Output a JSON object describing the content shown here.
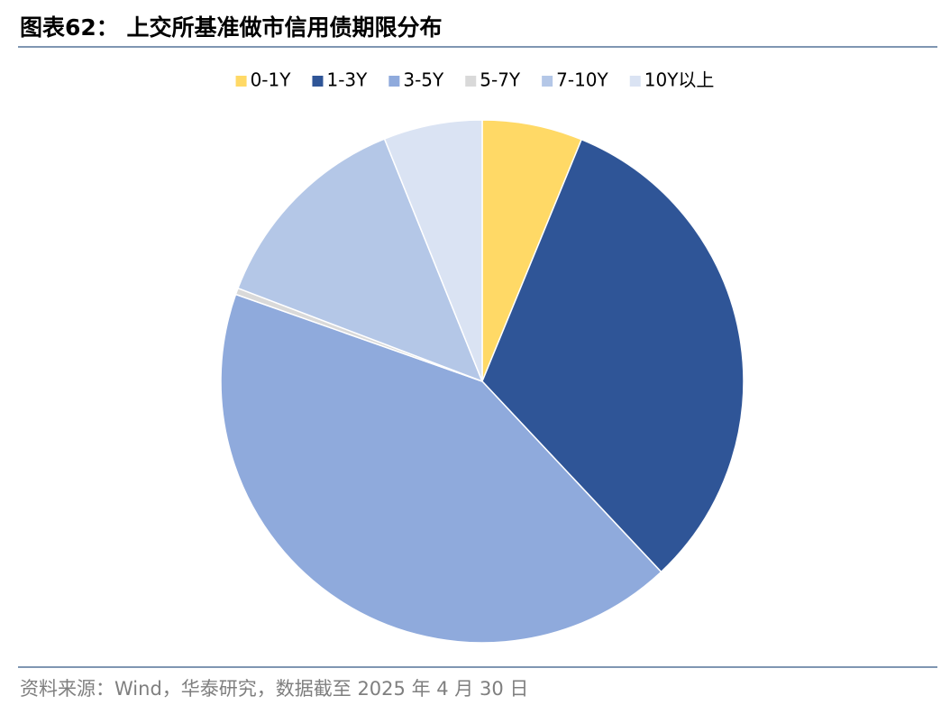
{
  "chart_data": {
    "type": "pie",
    "title": "图表62：  上交所基准做市信用债期限分布",
    "source": "资料来源：Wind，华泰研究，数据截至 2025 年 4 月 30 日",
    "categories": [
      "0-1Y",
      "1-3Y",
      "3-5Y",
      "5-7Y",
      "7-10Y",
      "10Y以上"
    ],
    "values": [
      6.2,
      31.8,
      42.4,
      0.4,
      13.1,
      6.1
    ],
    "colors": [
      "#FFD966",
      "#2F5597",
      "#8FAADC",
      "#D9D9D9",
      "#B4C7E7",
      "#DAE3F3"
    ],
    "legend": "top"
  }
}
